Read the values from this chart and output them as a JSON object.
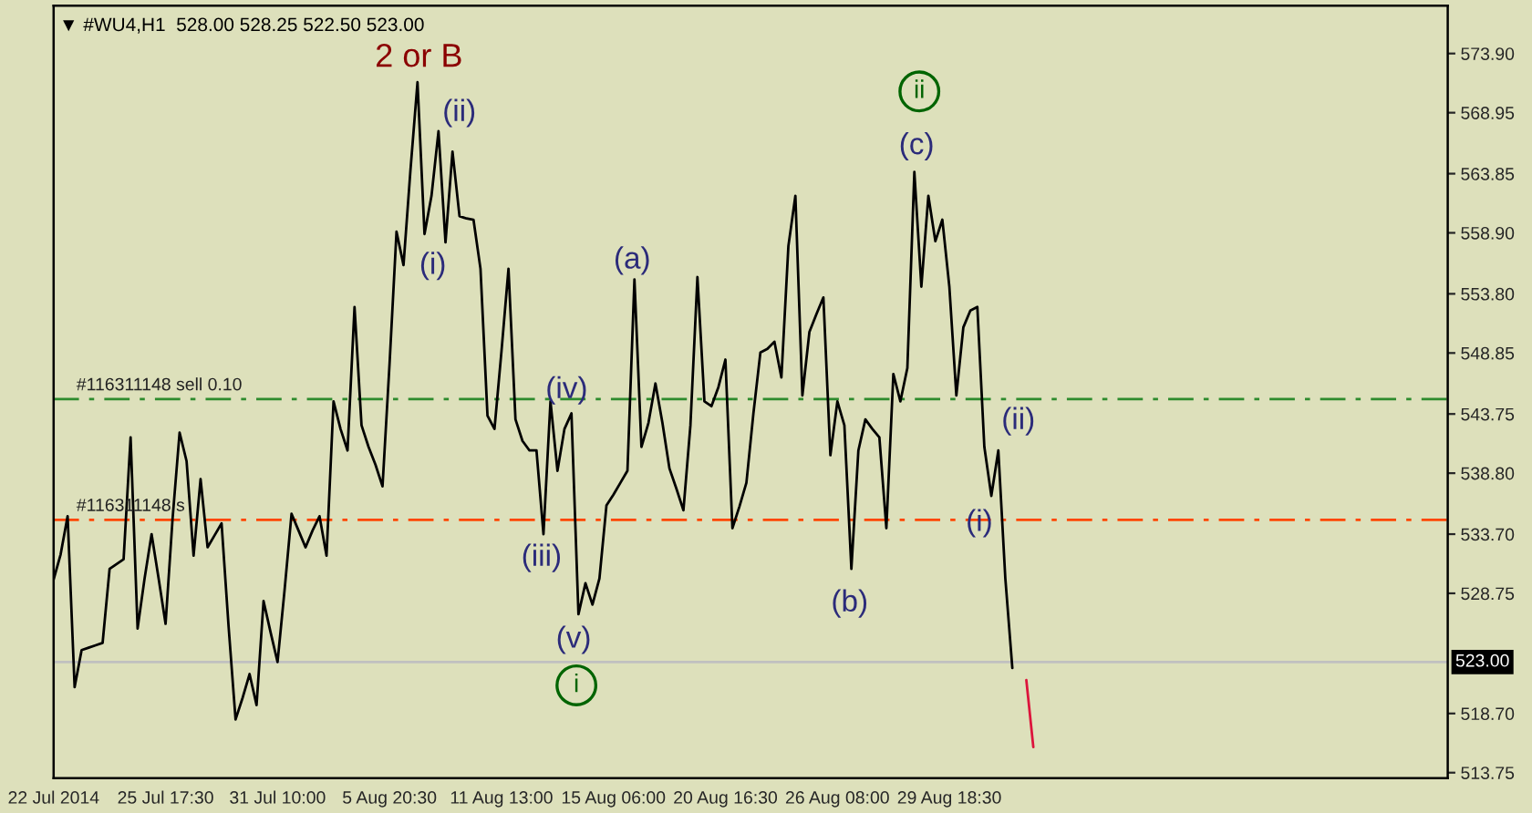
{
  "chart_data": {
    "type": "line",
    "title": "▼ #WU4,H1  528.00 528.25 522.50 523.00",
    "categories": [
      "22 Jul 2014",
      null,
      null,
      null,
      null,
      null,
      null,
      null,
      null,
      null,
      null,
      null,
      null,
      null,
      null,
      null,
      "25 Jul 17:30",
      null,
      null,
      null,
      null,
      null,
      null,
      null,
      null,
      null,
      null,
      null,
      null,
      null,
      null,
      null,
      "31 Jul 10:00",
      null,
      null,
      null,
      null,
      null,
      null,
      null,
      null,
      null,
      null,
      null,
      null,
      null,
      null,
      null,
      "5 Aug 20:30",
      null,
      null,
      null,
      null,
      null,
      null,
      null,
      null,
      null,
      null,
      null,
      null,
      null,
      null,
      null,
      "11 Aug 13:00",
      null,
      null,
      null,
      null,
      null,
      null,
      null,
      null,
      null,
      null,
      null,
      null,
      null,
      null,
      null,
      "15 Aug 06:00",
      null,
      null,
      null,
      null,
      null,
      null,
      null,
      null,
      null,
      null,
      null,
      null,
      null,
      null,
      null,
      "20 Aug 16:30",
      null,
      null,
      null,
      null,
      null,
      null,
      null,
      null,
      null,
      null,
      null,
      null,
      null,
      null,
      null,
      "26 Aug 08:00",
      null,
      null,
      null,
      null,
      null,
      null,
      null,
      null,
      null,
      null,
      null,
      null,
      null,
      null,
      null,
      "29 Aug 18:30",
      null,
      null,
      null,
      null,
      null,
      null,
      null,
      null,
      null,
      null,
      null,
      null
    ],
    "series": [
      {
        "color": "#000000",
        "values": [
          529.9,
          532.0,
          535.2,
          520.9,
          524.0,
          524.2,
          524.4,
          524.6,
          530.8,
          531.2,
          531.6,
          541.8,
          525.8,
          530.0,
          533.7,
          530.0,
          526.2,
          535.0,
          542.2,
          539.8,
          531.9,
          538.3,
          532.6,
          533.6,
          534.6,
          526.0,
          518.2,
          520.0,
          522.0,
          519.4,
          528.1,
          525.5,
          523.0,
          529.0,
          535.4,
          534.0,
          532.6,
          534.0,
          535.2,
          531.9,
          544.8,
          542.5,
          540.7,
          552.7,
          542.8,
          541.0,
          539.5,
          537.7,
          547.9,
          559.0,
          556.2,
          564.2,
          571.5,
          558.8,
          562.0,
          567.4,
          558.1,
          565.7,
          560.3,
          560.1,
          560.0,
          555.9,
          543.6,
          542.5,
          549.0,
          555.9,
          543.3,
          541.5,
          540.7,
          540.7,
          533.7,
          544.8,
          539.0,
          542.5,
          543.8,
          527.0,
          529.6,
          527.8,
          530.0,
          536.1,
          537.0,
          538.0,
          539.0,
          555.0,
          541.0,
          543.0,
          546.3,
          543.0,
          539.2,
          537.5,
          535.7,
          542.8,
          555.2,
          544.8,
          544.4,
          546.0,
          548.3,
          534.2,
          536.0,
          538.0,
          543.8,
          548.9,
          549.2,
          549.8,
          546.8,
          557.8,
          562.0,
          545.3,
          550.6,
          552.1,
          553.5,
          540.3,
          544.8,
          542.8,
          530.8,
          540.7,
          543.3,
          542.5,
          541.8,
          534.2,
          547.1,
          544.8,
          547.6,
          564.0,
          554.4,
          562.0,
          558.2,
          560.0,
          554.4,
          545.3,
          551.0,
          552.4,
          552.7,
          541.0,
          536.9,
          540.7,
          530.0,
          522.5,
          null,
          null,
          null
        ]
      },
      {
        "color": "#dc143c",
        "values": [
          null,
          null,
          null,
          null,
          null,
          null,
          null,
          null,
          null,
          null,
          null,
          null,
          null,
          null,
          null,
          null,
          null,
          null,
          null,
          null,
          null,
          null,
          null,
          null,
          null,
          null,
          null,
          null,
          null,
          null,
          null,
          null,
          null,
          null,
          null,
          null,
          null,
          null,
          null,
          null,
          null,
          null,
          null,
          null,
          null,
          null,
          null,
          null,
          null,
          null,
          null,
          null,
          null,
          null,
          null,
          null,
          null,
          null,
          null,
          null,
          null,
          null,
          null,
          null,
          null,
          null,
          null,
          null,
          null,
          null,
          null,
          null,
          null,
          null,
          null,
          null,
          null,
          null,
          null,
          null,
          null,
          null,
          null,
          null,
          null,
          null,
          null,
          null,
          null,
          null,
          null,
          null,
          null,
          null,
          null,
          null,
          null,
          null,
          null,
          null,
          null,
          null,
          null,
          null,
          null,
          null,
          null,
          null,
          null,
          null,
          null,
          null,
          null,
          null,
          null,
          null,
          null,
          null,
          null,
          null,
          null,
          null,
          null,
          null,
          null,
          null,
          null,
          null,
          null,
          null,
          null,
          null,
          null,
          null,
          null,
          null,
          null,
          null,
          null,
          521.5,
          515.9
        ]
      }
    ],
    "ylim": [
      513.3,
      577.9
    ],
    "yticks": [
      {
        "value": 513.75,
        "label": "513.75"
      },
      {
        "value": 518.7,
        "label": "518.70"
      },
      {
        "value": 528.75,
        "label": "528.75"
      },
      {
        "value": 533.7,
        "label": "533.70"
      },
      {
        "value": 538.8,
        "label": "538.80"
      },
      {
        "value": 543.75,
        "label": "543.75"
      },
      {
        "value": 548.85,
        "label": "548.85"
      },
      {
        "value": 553.8,
        "label": "553.80"
      },
      {
        "value": 558.9,
        "label": "558.90"
      },
      {
        "value": 563.85,
        "label": "563.85"
      },
      {
        "value": 568.95,
        "label": "568.95"
      },
      {
        "value": 573.9,
        "label": "573.90"
      }
    ],
    "ref_lines": [
      {
        "axis": "y",
        "value": 545.0,
        "label": "#116311148 sell 0.10",
        "color": "#2e8b2e",
        "line_style": "dashdot"
      },
      {
        "axis": "y",
        "value": 534.9,
        "label": "#116311148 s",
        "color": "#ff4500",
        "line_style": "dashdot"
      },
      {
        "axis": "y",
        "value": 523.0,
        "label": "523.00",
        "color": "#c0c0c0",
        "line_style": "solid"
      }
    ],
    "annotations": [
      "2 or B",
      "(ii)",
      "(i)",
      "(a)",
      "(iv)",
      "(iii)",
      "(v)",
      "i",
      "(b)",
      "(c)",
      "ii",
      "(ii)",
      "(i)"
    ],
    "grid": false
  }
}
